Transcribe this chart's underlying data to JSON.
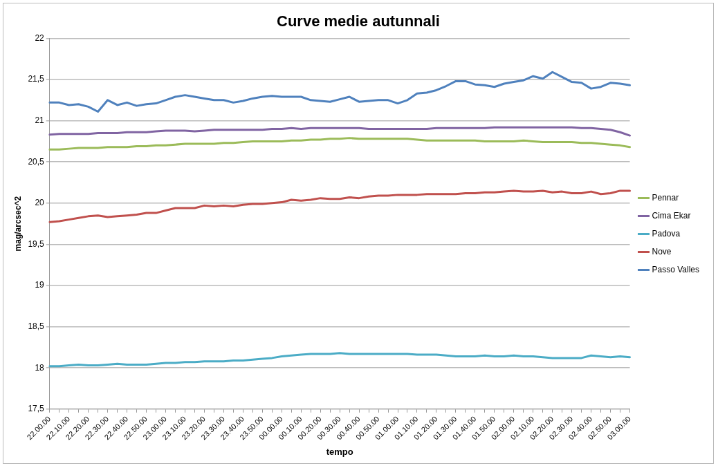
{
  "chart_data": {
    "type": "line",
    "title": "Curve medie autunnali",
    "xlabel": "tempo",
    "ylabel": "mag/arcsec^2",
    "categories": [
      "22.00.00",
      null,
      "22.10.00",
      null,
      "22.20.00",
      null,
      "22.30.00",
      null,
      "22.40.00",
      null,
      "22.50.00",
      null,
      "23.00.00",
      null,
      "23.10.00",
      null,
      "23.20.00",
      null,
      "23.30.00",
      null,
      "23.40.00",
      null,
      "23.50.00",
      null,
      "00.00.00",
      null,
      "00.10.00",
      null,
      "00.20.00",
      null,
      "00.30.00",
      null,
      "00.40.00",
      null,
      "00.50.00",
      null,
      "01.00.00",
      null,
      "01.10.00",
      null,
      "01.20.00",
      null,
      "01.30.00",
      null,
      "01.40.00",
      null,
      "01.50.00",
      null,
      "02.00.00",
      null,
      "02.10.00",
      null,
      "02.20.00",
      null,
      "02.30.00",
      null,
      "02.40.00",
      null,
      "02.50.00",
      null,
      "03.00.00"
    ],
    "series": [
      {
        "name": "Pennar",
        "color": "#9bbb59",
        "values": [
          20.65,
          20.65,
          20.66,
          20.67,
          20.67,
          20.67,
          20.68,
          20.68,
          20.68,
          20.69,
          20.69,
          20.7,
          20.7,
          20.71,
          20.72,
          20.72,
          20.72,
          20.72,
          20.73,
          20.73,
          20.74,
          20.75,
          20.75,
          20.75,
          20.75,
          20.76,
          20.76,
          20.77,
          20.77,
          20.78,
          20.78,
          20.79,
          20.78,
          20.78,
          20.78,
          20.78,
          20.78,
          20.78,
          20.77,
          20.76,
          20.76,
          20.76,
          20.76,
          20.76,
          20.76,
          20.75,
          20.75,
          20.75,
          20.75,
          20.76,
          20.75,
          20.74,
          20.74,
          20.74,
          20.74,
          20.73,
          20.73,
          20.72,
          20.71,
          20.7,
          20.68
        ]
      },
      {
        "name": "Cima Ekar",
        "color": "#8064a2",
        "values": [
          20.83,
          20.84,
          20.84,
          20.84,
          20.84,
          20.85,
          20.85,
          20.85,
          20.86,
          20.86,
          20.86,
          20.87,
          20.88,
          20.88,
          20.88,
          20.87,
          20.88,
          20.89,
          20.89,
          20.89,
          20.89,
          20.89,
          20.89,
          20.9,
          20.9,
          20.91,
          20.9,
          20.91,
          20.91,
          20.91,
          20.91,
          20.91,
          20.91,
          20.9,
          20.9,
          20.9,
          20.9,
          20.9,
          20.9,
          20.9,
          20.91,
          20.91,
          20.91,
          20.91,
          20.91,
          20.91,
          20.92,
          20.92,
          20.92,
          20.92,
          20.92,
          20.92,
          20.92,
          20.92,
          20.92,
          20.91,
          20.91,
          20.9,
          20.89,
          20.86,
          20.82
        ]
      },
      {
        "name": "Padova",
        "color": "#4bacc6",
        "values": [
          18.02,
          18.02,
          18.03,
          18.04,
          18.03,
          18.03,
          18.04,
          18.05,
          18.04,
          18.04,
          18.04,
          18.05,
          18.06,
          18.06,
          18.07,
          18.07,
          18.08,
          18.08,
          18.08,
          18.09,
          18.09,
          18.1,
          18.11,
          18.12,
          18.14,
          18.15,
          18.16,
          18.17,
          18.17,
          18.17,
          18.18,
          18.17,
          18.17,
          18.17,
          18.17,
          18.17,
          18.17,
          18.17,
          18.16,
          18.16,
          18.16,
          18.15,
          18.14,
          18.14,
          18.14,
          18.15,
          18.14,
          18.14,
          18.15,
          18.14,
          18.14,
          18.13,
          18.12,
          18.12,
          18.12,
          18.12,
          18.15,
          18.14,
          18.13,
          18.14,
          18.13
        ]
      },
      {
        "name": "Nove",
        "color": "#c0504d",
        "values": [
          19.77,
          19.78,
          19.8,
          19.82,
          19.84,
          19.85,
          19.83,
          19.84,
          19.85,
          19.86,
          19.88,
          19.88,
          19.91,
          19.94,
          19.94,
          19.94,
          19.97,
          19.96,
          19.97,
          19.96,
          19.98,
          19.99,
          19.99,
          20.0,
          20.01,
          20.04,
          20.03,
          20.04,
          20.06,
          20.05,
          20.05,
          20.07,
          20.06,
          20.08,
          20.09,
          20.09,
          20.1,
          20.1,
          20.1,
          20.11,
          20.11,
          20.11,
          20.11,
          20.12,
          20.12,
          20.13,
          20.13,
          20.14,
          20.15,
          20.14,
          20.14,
          20.15,
          20.13,
          20.14,
          20.12,
          20.12,
          20.14,
          20.11,
          20.12,
          20.15,
          20.15
        ]
      },
      {
        "name": "Passo Valles",
        "color": "#4f81bd",
        "values": [
          21.22,
          21.22,
          21.19,
          21.2,
          21.17,
          21.11,
          21.25,
          21.19,
          21.22,
          21.18,
          21.2,
          21.21,
          21.25,
          21.29,
          21.31,
          21.29,
          21.27,
          21.25,
          21.25,
          21.22,
          21.24,
          21.27,
          21.29,
          21.3,
          21.29,
          21.29,
          21.29,
          21.25,
          21.24,
          21.23,
          21.26,
          21.29,
          21.23,
          21.24,
          21.25,
          21.25,
          21.21,
          21.25,
          21.33,
          21.34,
          21.37,
          21.42,
          21.48,
          21.48,
          21.44,
          21.43,
          21.41,
          21.45,
          21.47,
          21.49,
          21.54,
          21.51,
          21.59,
          21.53,
          21.47,
          21.46,
          21.39,
          21.41,
          21.46,
          21.45,
          21.43
        ]
      }
    ],
    "ylim": [
      17.5,
      22
    ],
    "yticks": [
      {
        "value": 17.5,
        "label": "17,5"
      },
      18,
      {
        "value": 18.5,
        "label": "18,5"
      },
      19,
      {
        "value": 19.5,
        "label": "19,5"
      },
      20,
      {
        "value": 20.5,
        "label": "20,5"
      },
      21,
      {
        "value": 21.5,
        "label": "21,5"
      },
      22
    ],
    "grid": "y",
    "legend": "right",
    "marker": "none",
    "line_style": "solid"
  }
}
